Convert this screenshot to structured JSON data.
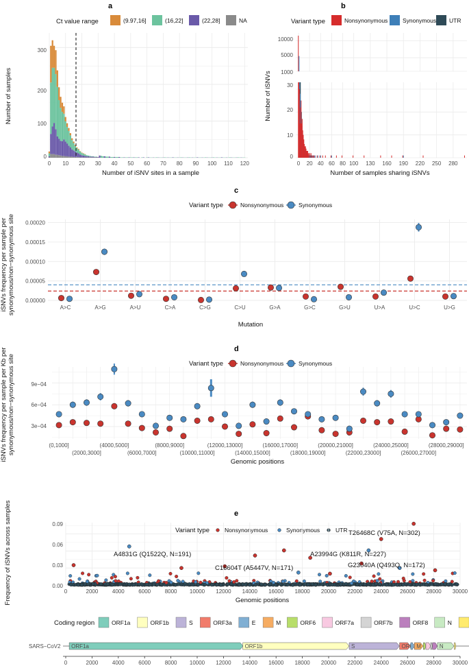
{
  "colors": {
    "ct1": "#d98b3a",
    "ct2": "#6cc39e",
    "ct3": "#6a5aa9",
    "na": "#8a8a8a",
    "nonsyn": "#d62c2c",
    "syn": "#3e7fb8",
    "utr": "#2e4a57",
    "nonsyn_pt": "#c9342e",
    "syn_pt": "#4a8ac2",
    "grid": "#ebebeb"
  },
  "panel_a": {
    "label": "a",
    "legend_title": "Ct value range",
    "legend_items": [
      "(9.97,16]",
      "(16,22]",
      "(22,28]",
      "NA"
    ],
    "xlabel": "Number of iSNV sites in a sample",
    "ylabel": "Number of samples",
    "xticks": [
      "0",
      "10",
      "20",
      "30",
      "40",
      "50",
      "60",
      "70",
      "80",
      "90",
      "100",
      "110",
      "120"
    ],
    "yticks": [
      "0",
      "100",
      "200",
      "300"
    ]
  },
  "panel_b": {
    "label": "b",
    "legend_title": "Variant type",
    "legend_items": [
      "Nonsynonymous",
      "Synonymous",
      "UTR"
    ],
    "xlabel": "Number of samples sharing iSNVs",
    "ylabel": "Number of iSNVs",
    "xticks": [
      "0",
      "20",
      "40",
      "60",
      "80",
      "100",
      "130",
      "160",
      "190",
      "220",
      "250",
      "280"
    ],
    "yticks_top": [
      "1000",
      "5000",
      "10000"
    ],
    "yticks_bottom": [
      "0",
      "10",
      "20",
      "30"
    ]
  },
  "panel_c": {
    "label": "c",
    "legend_title": "Variant type",
    "legend_items": [
      "Nonsynonymous",
      "Synonymous"
    ],
    "xlabel": "Mutation",
    "ylabel_1": "iSNVs frequency per sample per",
    "ylabel_2": "synonymous/non−synonymous site",
    "yticks": [
      "0.00000",
      "0.00005",
      "0.00010",
      "0.00015",
      "0.00020"
    ],
    "categories": [
      "A>C",
      "A>G",
      "A>U",
      "C>A",
      "C>G",
      "C>U",
      "G>A",
      "G>C",
      "G>U",
      "U>A",
      "U>C",
      "U>G"
    ]
  },
  "panel_d": {
    "label": "d",
    "legend_title": "Variant type",
    "legend_items": [
      "Nonsynonymous",
      "Synonymous"
    ],
    "xlabel": "Genomic positions",
    "ylabel_1": "iSNVs frequency per sample per Kb per",
    "ylabel_2": "synonymous/non−synonymous site",
    "yticks": [
      "3e−04",
      "6e−04",
      "9e−04"
    ],
    "xtick_labels": [
      "(0,1000]",
      "(2000,3000]",
      "(4000,5000]",
      "(6000,7000]",
      "(8000,9000]",
      "(10000,11000]",
      "(12000,13000]",
      "(14000,15000]",
      "(16000,17000]",
      "(18000,19000]",
      "(20000,21000]",
      "(22000,23000]",
      "(24000,25000]",
      "(26000,27000]",
      "(28000,29000]"
    ]
  },
  "panel_e": {
    "label": "e",
    "legend_title": "Variant type",
    "legend_items": [
      "Nonsynonymous",
      "Synonymous",
      "UTR"
    ],
    "xlabel": "Genomic positions",
    "ylabel": "Frequency of iSNVs across samples",
    "yticks": [
      "0.00",
      "0.03",
      "0.06",
      "0.09"
    ],
    "xticks": [
      "0",
      "2000",
      "4000",
      "6000",
      "8000",
      "10000",
      "12000",
      "14000",
      "16000",
      "18000",
      "20000",
      "22000",
      "24000",
      "26000",
      "28000",
      "30000"
    ],
    "annotations": [
      "T26468C (V75A, N=302)",
      "A4831G (Q1522Q, N=191)",
      "A23994G (K811R, N=227)",
      "C16604T (A5447V, N=171)",
      "G23040A (Q493Q, N=172)"
    ]
  },
  "coding": {
    "legend_title": "Coding region",
    "items": [
      "ORF1a",
      "ORF1b",
      "S",
      "ORF3a",
      "E",
      "M",
      "ORF6",
      "ORF7a",
      "ORF7b",
      "ORF8",
      "N",
      "ORF10"
    ],
    "colors": [
      "#7fcdbb",
      "#ffffbf",
      "#bcb3d8",
      "#f17c6b",
      "#80afd3",
      "#f6ac62",
      "#b8de6a",
      "#f8c9e1",
      "#d4d4d4",
      "#bb7fbd",
      "#c8eac3",
      "#ffeb6e"
    ],
    "genome_label": "SARS−CoV2",
    "genome_xticks": [
      "0",
      "2000",
      "4000",
      "6000",
      "8000",
      "10000",
      "12000",
      "14000",
      "16000",
      "18000",
      "20000",
      "22000",
      "24000",
      "26000",
      "28000",
      "30000"
    ]
  },
  "chart_data": [
    {
      "type": "bar",
      "stacked": true,
      "xlabel": "Number of iSNV sites in a sample",
      "ylabel": "Number of samples",
      "xlim": [
        0,
        122
      ],
      "ylim": [
        0,
        340
      ],
      "reference_line_x": 10,
      "x": [
        0,
        1,
        2,
        3,
        4,
        5,
        6,
        7,
        8,
        9,
        10,
        11,
        12,
        13,
        14,
        15,
        16,
        17,
        18,
        19,
        20,
        21,
        22,
        23,
        24,
        25,
        26,
        27,
        28,
        29,
        30
      ],
      "series": [
        {
          "name": "(9.97,16]",
          "values": [
            5,
            100,
            75,
            60,
            65,
            45,
            35,
            30,
            25,
            20,
            12,
            10,
            8,
            6,
            5,
            4,
            3,
            2,
            2,
            1,
            1,
            1,
            1,
            0,
            0,
            0,
            0,
            0,
            0,
            0,
            0
          ]
        },
        {
          "name": "(16,22]",
          "values": [
            8,
            140,
            160,
            150,
            150,
            135,
            105,
            90,
            80,
            70,
            55,
            45,
            40,
            33,
            25,
            20,
            15,
            12,
            10,
            8,
            6,
            5,
            4,
            3,
            2,
            2,
            1,
            1,
            1,
            1,
            0
          ]
        },
        {
          "name": "(22,28]",
          "values": [
            3,
            55,
            75,
            85,
            70,
            50,
            45,
            40,
            40,
            45,
            40,
            35,
            30,
            25,
            20,
            18,
            15,
            12,
            10,
            8,
            6,
            5,
            4,
            3,
            3,
            2,
            2,
            2,
            1,
            1,
            1
          ]
        },
        {
          "name": "NA",
          "values": [
            1,
            10,
            10,
            10,
            8,
            8,
            7,
            6,
            5,
            5,
            4,
            4,
            3,
            3,
            3,
            2,
            2,
            2,
            2,
            1,
            1,
            1,
            1,
            1,
            1,
            1,
            1,
            1,
            1,
            1,
            1
          ]
        }
      ]
    },
    {
      "type": "bar",
      "xlabel": "Number of samples sharing iSNVs",
      "ylabel": "Number of iSNVs",
      "broken_y_axis": true,
      "x": [
        1,
        2,
        3,
        4,
        5,
        6,
        7,
        8,
        9,
        10,
        11,
        12,
        13,
        14,
        15,
        16,
        17,
        18,
        19,
        20,
        22,
        24,
        26,
        28,
        30,
        35,
        40,
        45,
        50,
        60,
        70,
        80,
        100,
        120,
        150,
        170,
        190,
        227,
        302
      ],
      "series": [
        {
          "name": "Nonsynonymous",
          "values": [
            11500,
            33,
            30,
            15,
            22,
            25,
            15,
            17,
            12,
            10,
            8,
            6,
            5,
            5,
            4,
            3,
            3,
            3,
            2,
            2,
            2,
            2,
            1,
            1,
            1,
            1,
            1,
            1,
            1,
            1,
            1,
            1,
            1,
            1,
            1,
            1,
            1,
            1,
            1
          ]
        },
        {
          "name": "Synonymous",
          "values": [
            5500,
            33,
            28,
            25,
            20,
            13,
            10,
            8,
            7,
            5,
            4,
            3,
            3,
            2,
            2,
            2,
            1,
            1,
            1,
            1,
            1,
            1,
            1,
            1,
            1,
            1,
            1,
            0,
            0,
            1,
            0,
            0,
            0,
            0,
            0,
            0,
            1,
            0,
            0
          ]
        },
        {
          "name": "UTR",
          "values": [
            800,
            33,
            25,
            20,
            14,
            10,
            6,
            5,
            4,
            3,
            3,
            2,
            2,
            1,
            1,
            1,
            1,
            1,
            1,
            1,
            1,
            0,
            0,
            0,
            0,
            0,
            0,
            0,
            0,
            0,
            0,
            0,
            0,
            0,
            0,
            0,
            0,
            0,
            0
          ]
        }
      ]
    },
    {
      "type": "scatter",
      "xlabel": "Mutation",
      "ylim": [
        0,
        0.00021
      ],
      "categories": [
        "A>C",
        "A>G",
        "A>U",
        "C>A",
        "C>G",
        "C>U",
        "G>A",
        "G>C",
        "G>U",
        "U>A",
        "U>C",
        "U>G"
      ],
      "series": [
        {
          "name": "Nonsynonymous",
          "values": [
            6e-06,
            7.3e-05,
            1.2e-05,
            4e-06,
            1e-06,
            3.1e-05,
            3.3e-05,
            1e-05,
            3.5e-05,
            1e-05,
            5.6e-05,
            1e-05
          ]
        },
        {
          "name": "Synonymous",
          "values": [
            4e-06,
            0.000125,
            1.6e-05,
            8e-06,
            2e-06,
            6.8e-05,
            3.2e-05,
            3e-06,
            8e-06,
            2e-05,
            0.000188,
            1.1e-05
          ]
        }
      ],
      "hlines": [
        {
          "name": "Nonsynonymous",
          "y": 2.4e-05
        },
        {
          "name": "Synonymous",
          "y": 4e-05
        }
      ]
    },
    {
      "type": "scatter",
      "xlabel": "Genomic positions",
      "ylim": [
        5e-05,
        0.00115
      ],
      "x": [
        "(0,1000]",
        "(1000,2000]",
        "(2000,3000]",
        "(3000,4000]",
        "(4000,5000]",
        "(5000,6000]",
        "(6000,7000]",
        "(7000,8000]",
        "(8000,9000]",
        "(9000,10000]",
        "(10000,11000]",
        "(11000,12000]",
        "(12000,13000]",
        "(13000,14000]",
        "(14000,15000]",
        "(15000,16000]",
        "(16000,17000]",
        "(17000,18000]",
        "(18000,19000]",
        "(19000,20000]",
        "(20000,21000]",
        "(21000,22000]",
        "(22000,23000]",
        "(23000,24000]",
        "(24000,25000]",
        "(25000,26000]",
        "(26000,27000]",
        "(27000,28000]",
        "(28000,29000]",
        "(29000,30000]"
      ],
      "series": [
        {
          "name": "Nonsynonymous",
          "values": [
            0.00032,
            0.00036,
            0.00035,
            0.00034,
            0.00058,
            0.00034,
            0.00028,
            0.00022,
            0.00027,
            0.00017,
            0.00038,
            0.0004,
            0.0003,
            0.0002,
            0.00033,
            0.00021,
            0.00041,
            0.00029,
            0.00044,
            0.00025,
            0.0002,
            0.00022,
            0.00038,
            0.00036,
            0.00037,
            0.00023,
            0.0004,
            0.00018,
            0.00027,
            0.00026
          ]
        },
        {
          "name": "Synonymous",
          "values": [
            0.00047,
            0.0006,
            0.00063,
            0.00071,
            0.00109,
            0.00062,
            0.00047,
            0.00031,
            0.00042,
            0.0004,
            0.00058,
            0.00083,
            0.00047,
            0.00031,
            0.0006,
            0.00037,
            0.00063,
            0.00051,
            0.00047,
            0.0004,
            0.00042,
            0.00027,
            0.00078,
            0.00062,
            0.00075,
            0.00047,
            0.00047,
            0.00032,
            0.00036,
            0.00045
          ]
        }
      ]
    },
    {
      "type": "scatter",
      "xlabel": "Genomic positions",
      "ylabel": "Frequency of iSNVs across samples",
      "xlim": [
        0,
        30000
      ],
      "ylim": [
        0,
        0.11
      ],
      "points": [
        {
          "x": 26468,
          "y": 0.108,
          "series": "Nonsynonymous",
          "label": "T26468C (V75A, N=302)"
        },
        {
          "x": 23994,
          "y": 0.081,
          "series": "Nonsynonymous",
          "label": "A23994G (K811R, N=227)"
        },
        {
          "x": 4831,
          "y": 0.068,
          "series": "Synonymous",
          "label": "A4831G (Q1522Q, N=191)"
        },
        {
          "x": 16604,
          "y": 0.061,
          "series": "Nonsynonymous",
          "label": "C16604T (A5447V, N=171)"
        },
        {
          "x": 23040,
          "y": 0.061,
          "series": "Synonymous",
          "label": "G23040A (Q493Q, N=172)"
        },
        {
          "x": 14400,
          "y": 0.052,
          "series": "Nonsynonymous"
        },
        {
          "x": 18600,
          "y": 0.048,
          "series": "Nonsynonymous"
        },
        {
          "x": 12100,
          "y": 0.033,
          "series": "Nonsynonymous"
        },
        {
          "x": 600,
          "y": 0.035,
          "series": "Nonsynonymous"
        },
        {
          "x": 8800,
          "y": 0.03,
          "series": "Nonsynonymous"
        },
        {
          "x": 22500,
          "y": 0.038,
          "series": "Nonsynonymous"
        },
        {
          "x": 25400,
          "y": 0.03,
          "series": "Synonymous"
        },
        {
          "x": 28100,
          "y": 0.026,
          "series": "Nonsynonymous"
        },
        {
          "x": 17700,
          "y": 0.022,
          "series": "Synonymous"
        },
        {
          "x": 20100,
          "y": 0.02,
          "series": "Nonsynonymous"
        }
      ]
    },
    {
      "type": "bar",
      "title": "SARS−CoV2",
      "xlim": [
        0,
        30000
      ],
      "segments": [
        {
          "name": "ORF1a",
          "start": 266,
          "end": 13483
        },
        {
          "name": "ORF1b",
          "start": 13468,
          "end": 21555
        },
        {
          "name": "S",
          "start": 21563,
          "end": 25384
        },
        {
          "name": "ORF3a",
          "start": 25393,
          "end": 26220
        },
        {
          "name": "E",
          "start": 26245,
          "end": 26472
        },
        {
          "name": "M",
          "start": 26523,
          "end": 27191
        },
        {
          "name": "ORF6",
          "start": 27202,
          "end": 27387
        },
        {
          "name": "ORF7a",
          "start": 27394,
          "end": 27759
        },
        {
          "name": "ORF7b",
          "start": 27756,
          "end": 27887
        },
        {
          "name": "ORF8",
          "start": 27894,
          "end": 28259
        },
        {
          "name": "N",
          "start": 28274,
          "end": 29533
        },
        {
          "name": "ORF10",
          "start": 29558,
          "end": 29674
        }
      ]
    }
  ]
}
